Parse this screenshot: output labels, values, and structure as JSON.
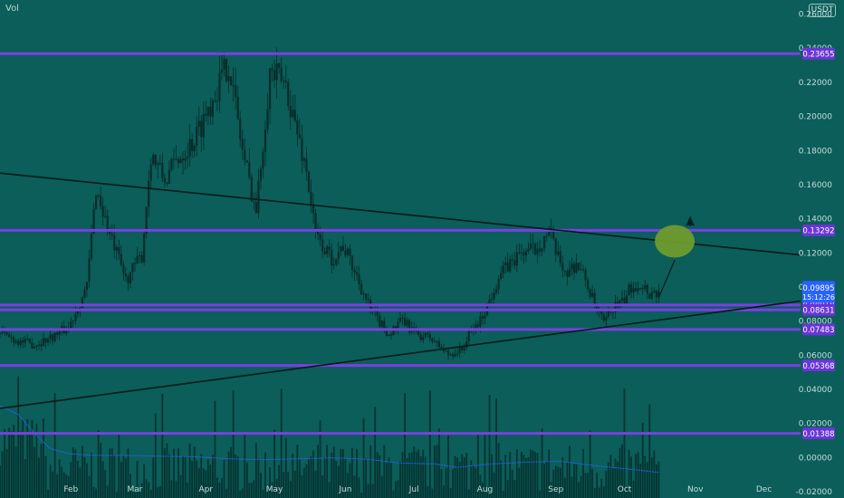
{
  "header": {
    "volume_label": "Vol",
    "currency_badge": "USDT"
  },
  "price_tag": {
    "price": "0.09895",
    "countdown": "15:12:26",
    "color": "#2962ff"
  },
  "colors": {
    "background": "#0b5e5a",
    "level_line": "#7b3fe4",
    "level_tag": "#6a35d6",
    "candle": "#062c2a",
    "trendline": "#061a19",
    "volume_ma": "#2962ff",
    "target_circle": "#6f9a2e",
    "axis_text": "#c8dcda"
  },
  "chart_data": {
    "type": "candlestick",
    "title": "",
    "xlabel": "",
    "ylabel": "",
    "y_ticks": [
      "0.26000",
      "0.24000",
      "0.22000",
      "0.20000",
      "0.18000",
      "0.16000",
      "0.14000",
      "0.12000",
      "0.10000",
      "0.08000",
      "0.06000",
      "0.04000",
      "0.02000",
      "0.00000",
      "-0.02000"
    ],
    "y_tick_values": [
      0.26,
      0.24,
      0.22,
      0.2,
      0.18,
      0.16,
      0.14,
      0.12,
      0.1,
      0.08,
      0.06,
      0.04,
      0.02,
      0.0,
      -0.02
    ],
    "ylim": [
      -0.024,
      0.268
    ],
    "x_ticks": [
      "Feb",
      "Mar",
      "Apr",
      "May",
      "Jun",
      "Jul",
      "Aug",
      "Sep",
      "Oct",
      "Nov",
      "Dec"
    ],
    "x_tick_days": [
      31,
      59,
      90,
      120,
      151,
      181,
      212,
      243,
      273,
      304,
      334
    ],
    "xlim_days": [
      0,
      350
    ],
    "horizontal_levels": [
      {
        "label": "0.23655",
        "value": 0.23655
      },
      {
        "label": "0.13292",
        "value": 0.13292
      },
      {
        "label": "0.08918",
        "value": 0.08918
      },
      {
        "label": "0.08631",
        "value": 0.08631
      },
      {
        "label": "0.07483",
        "value": 0.07483
      },
      {
        "label": "0.05368",
        "value": 0.05368
      },
      {
        "label": "0.01388",
        "value": 0.01388
      }
    ],
    "trendlines": [
      {
        "name": "descending resistance",
        "points": [
          [
            0,
            0.1665
          ],
          [
            350,
            0.1185
          ]
        ]
      },
      {
        "name": "ascending support",
        "points": [
          [
            0,
            0.0285
          ],
          [
            350,
            0.0915
          ]
        ]
      },
      {
        "name": "projection",
        "points": [
          [
            288,
            0.0935
          ],
          [
            295,
            0.1155
          ]
        ]
      }
    ],
    "target_zone": {
      "day": 295,
      "price": 0.1265
    },
    "price_path_days": [
      0,
      8,
      15,
      22,
      30,
      38,
      42,
      48,
      55,
      62,
      66,
      72,
      78,
      85,
      92,
      100,
      106,
      112,
      118,
      125,
      130,
      134,
      138,
      145,
      150,
      156,
      162,
      170,
      176,
      182,
      188,
      196,
      202,
      206,
      210,
      214,
      218,
      222,
      228,
      234,
      240,
      244,
      248,
      252,
      256,
      260,
      264,
      268,
      272,
      276,
      280,
      284,
      288
    ],
    "price_path_values": [
      0.073,
      0.068,
      0.066,
      0.07,
      0.076,
      0.1,
      0.158,
      0.13,
      0.104,
      0.118,
      0.178,
      0.162,
      0.176,
      0.186,
      0.208,
      0.232,
      0.18,
      0.144,
      0.226,
      0.218,
      0.19,
      0.168,
      0.13,
      0.116,
      0.124,
      0.106,
      0.086,
      0.072,
      0.08,
      0.072,
      0.07,
      0.06,
      0.063,
      0.074,
      0.08,
      0.092,
      0.106,
      0.112,
      0.12,
      0.122,
      0.132,
      0.116,
      0.108,
      0.114,
      0.104,
      0.089,
      0.078,
      0.088,
      0.09,
      0.1,
      0.102,
      0.096,
      0.097
    ],
    "volume_ma_days": [
      0,
      8,
      15,
      22,
      30,
      38,
      45,
      55,
      70,
      85,
      100,
      115,
      130,
      145,
      160,
      175,
      190,
      200,
      215,
      230,
      245,
      260,
      275,
      288
    ],
    "volume_ma_values": [
      0.03,
      0.025,
      0.014,
      0.005,
      0.002,
      0.0012,
      0.001,
      0.001,
      0.0005,
      0.0002,
      -0.001,
      -0.0015,
      -0.001,
      -0.0005,
      -0.0012,
      -0.0035,
      -0.004,
      -0.006,
      -0.004,
      -0.003,
      -0.0025,
      -0.005,
      -0.007,
      -0.009
    ]
  }
}
